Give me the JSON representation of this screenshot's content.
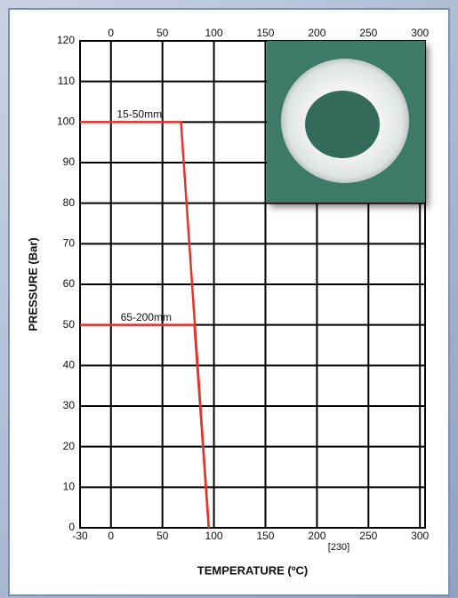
{
  "chart_data": {
    "type": "line",
    "x_label": "TEMPERATURE (ºC)",
    "y_label": "PRESSURE (Bar)",
    "xlim": [
      -30,
      305
    ],
    "ylim": [
      0,
      120
    ],
    "xticks": [
      -30,
      0,
      50,
      100,
      150,
      200,
      250,
      300
    ],
    "x2ticks": [
      0,
      50,
      100,
      150,
      200,
      250,
      300
    ],
    "yticks": [
      0,
      10,
      20,
      30,
      40,
      50,
      60,
      70,
      80,
      90,
      100,
      110,
      120
    ],
    "annotation": "[230]",
    "grid": true,
    "series": [
      {
        "name": "15-50mm",
        "color": "#e3342b",
        "x": [
          -30,
          68,
          95
        ],
        "values": [
          100,
          100,
          0
        ]
      },
      {
        "name": "65-200mm",
        "color": "#e3342b",
        "x": [
          -30,
          81,
          95
        ],
        "values": [
          50,
          50,
          0
        ]
      }
    ]
  }
}
